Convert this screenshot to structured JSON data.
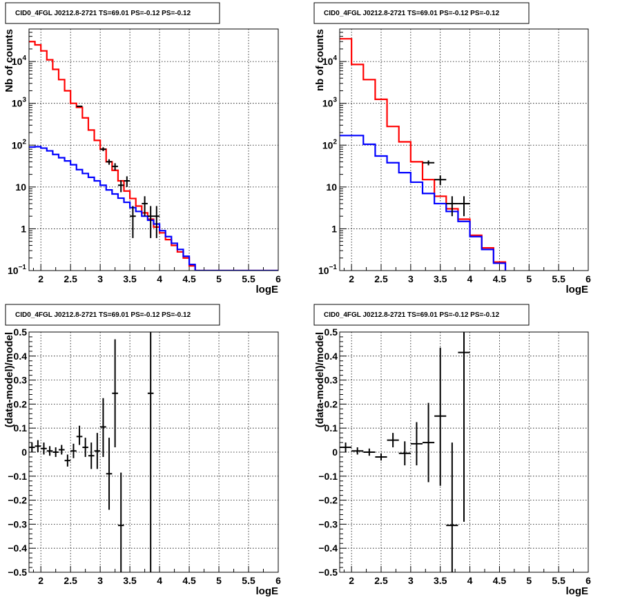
{
  "chart_data": [
    {
      "type": "line",
      "title": "CID0_4FGL J0212.8-2721 TS=69.01 PS=-0.12 PS=-0.12",
      "xlabel": "logE",
      "ylabel": "Nb of counts",
      "log_y": true,
      "xlim": [
        1.8,
        6.0
      ],
      "ylim": [
        0.1,
        60000
      ],
      "grid": true,
      "x_ticks": [
        "2",
        "2.5",
        "3",
        "3.5",
        "4",
        "4.5",
        "5",
        "5.5",
        "6"
      ],
      "y_ticks": [
        {
          "v": 0.1,
          "base": "10",
          "exp": "−1"
        },
        {
          "v": 1,
          "label": "1"
        },
        {
          "v": 10,
          "label": "10"
        },
        {
          "v": 100,
          "base": "10",
          "exp": "2"
        },
        {
          "v": 1000,
          "base": "10",
          "exp": "3"
        },
        {
          "v": 10000,
          "base": "10",
          "exp": "4"
        }
      ],
      "bin_edges": [
        1.8,
        1.9,
        2.0,
        2.1,
        2.2,
        2.3,
        2.4,
        2.5,
        2.6,
        2.7,
        2.8,
        2.9,
        3.0,
        3.1,
        3.2,
        3.3,
        3.4,
        3.5,
        3.6,
        3.7,
        3.8,
        3.9,
        4.0,
        4.1,
        4.2,
        4.3,
        4.4,
        4.5,
        4.6,
        4.7,
        4.8,
        4.9,
        5.0,
        5.1,
        5.2,
        5.3,
        5.4,
        5.5,
        5.6,
        5.7,
        5.8,
        5.9,
        6.0
      ],
      "series": [
        {
          "color": "#ff0000",
          "values": [
            30000,
            25000,
            18000,
            11000,
            6500,
            3700,
            2000,
            1000,
            800,
            450,
            230,
            130,
            80,
            40,
            25,
            14,
            8,
            5.3,
            3.5,
            2.4,
            1.7,
            1.1,
            0.8,
            0.55,
            0.4,
            0.28,
            0.2,
            0.13,
            0.1,
            0.1,
            0.1,
            0.1,
            0.1,
            0.1,
            0.1,
            0.1,
            0.1,
            0.1,
            0.1,
            0.1,
            0.1,
            0.1
          ]
        },
        {
          "color": "#0000ff",
          "values": [
            90,
            92,
            85,
            73,
            60,
            50,
            42,
            34,
            26,
            21,
            17,
            14,
            11,
            8.5,
            6.8,
            5.4,
            4.3,
            3.2,
            2.6,
            2.0,
            1.6,
            1.3,
            0.9,
            0.65,
            0.45,
            0.32,
            0.22,
            0.14,
            0.1,
            0.1,
            0.1,
            0.1,
            0.1,
            0.1,
            0.1,
            0.1,
            0.1,
            0.1,
            0.1,
            0.1,
            0.1,
            0.1
          ]
        }
      ],
      "points": [
        {
          "x": 2.65,
          "y": 850,
          "xerr": 0.05,
          "ylo": 830,
          "yhi": 870
        },
        {
          "x": 3.05,
          "y": 80,
          "xerr": 0.05,
          "ylo": 72,
          "yhi": 89
        },
        {
          "x": 3.15,
          "y": 40,
          "xerr": 0.05,
          "ylo": 34,
          "yhi": 46
        },
        {
          "x": 3.25,
          "y": 31,
          "xerr": 0.05,
          "ylo": 25,
          "yhi": 37
        },
        {
          "x": 3.35,
          "y": 11,
          "xerr": 0.05,
          "ylo": 7.5,
          "yhi": 14.5
        },
        {
          "x": 3.45,
          "y": 14,
          "xerr": 0.05,
          "ylo": 10,
          "yhi": 18
        },
        {
          "x": 3.55,
          "y": 2.0,
          "xerr": 0.05,
          "ylo": 0.6,
          "yhi": 3.5
        },
        {
          "x": 3.75,
          "y": 4.0,
          "xerr": 0.05,
          "ylo": 2.0,
          "yhi": 6.0
        },
        {
          "x": 3.85,
          "y": 2.0,
          "xerr": 0.05,
          "ylo": 0.6,
          "yhi": 3.5
        },
        {
          "x": 3.95,
          "y": 2.0,
          "xerr": 0.05,
          "ylo": 0.6,
          "yhi": 3.5
        }
      ]
    },
    {
      "type": "line",
      "title": "CID0_4FGL J0212.8-2721 TS=69.01 PS=-0.12 PS=-0.12",
      "xlabel": "logE",
      "ylabel": "nb of counts",
      "log_y": true,
      "xlim": [
        1.8,
        6.0
      ],
      "ylim": [
        0.1,
        60000
      ],
      "grid": true,
      "x_ticks": [
        "2",
        "2.5",
        "3",
        "3.5",
        "4",
        "4.5",
        "5",
        "5.5",
        "6"
      ],
      "y_ticks": [
        {
          "v": 0.1,
          "base": "10",
          "exp": "−1"
        },
        {
          "v": 1,
          "label": "1"
        },
        {
          "v": 10,
          "label": "10"
        },
        {
          "v": 100,
          "base": "10",
          "exp": "2"
        },
        {
          "v": 1000,
          "base": "10",
          "exp": "3"
        },
        {
          "v": 10000,
          "base": "10",
          "exp": "4"
        }
      ],
      "bin_edges": [
        1.8,
        2.0,
        2.2,
        2.4,
        2.6,
        2.8,
        3.0,
        3.2,
        3.4,
        3.6,
        3.8,
        4.0,
        4.2,
        4.4,
        4.6,
        4.8,
        5.0,
        5.2,
        5.4,
        5.6,
        5.8,
        6.0
      ],
      "series": [
        {
          "color": "#ff0000",
          "values": [
            35000,
            8500,
            3700,
            1250,
            280,
            120,
            40,
            15,
            6,
            3.0,
            1.7,
            0.7,
            0.35,
            0.16,
            0.09,
            0.08,
            0.08,
            0.08,
            0.08,
            0.08,
            0.08
          ]
        },
        {
          "color": "#0000ff",
          "values": [
            170,
            170,
            105,
            55,
            38,
            22,
            13,
            7,
            4,
            2.6,
            1.5,
            0.65,
            0.32,
            0.15,
            0.08,
            0.08,
            0.08,
            0.08,
            0.08,
            0.08,
            0.08
          ]
        }
      ],
      "points": [
        {
          "x": 3.3,
          "y": 38,
          "xerr": 0.1,
          "ylo": 33,
          "yhi": 43
        },
        {
          "x": 3.5,
          "y": 15,
          "xerr": 0.1,
          "ylo": 11,
          "yhi": 19
        },
        {
          "x": 3.7,
          "y": 4.0,
          "xerr": 0.1,
          "ylo": 2.0,
          "yhi": 6.0
        },
        {
          "x": 3.9,
          "y": 4.0,
          "xerr": 0.1,
          "ylo": 2.0,
          "yhi": 6.0
        }
      ]
    },
    {
      "type": "scatter",
      "title": "CID0_4FGL J0212.8-2721 TS=69.01 PS=-0.12 PS=-0.12",
      "xlabel": "logE",
      "ylabel": "(data-model)/model",
      "xlim": [
        1.8,
        6.0
      ],
      "ylim": [
        -0.5,
        0.5
      ],
      "grid": true,
      "x_ticks": [
        "2",
        "2.5",
        "3",
        "3.5",
        "4",
        "4.5",
        "5",
        "5.5",
        "6"
      ],
      "y_ticks": [
        "−0.5",
        "−0.4",
        "−0.3",
        "−0.2",
        "−0.1",
        "0",
        "0.1",
        "0.2",
        "0.3",
        "0.4",
        "0.5"
      ],
      "points": [
        {
          "x": 1.85,
          "y": 0.02,
          "xerr": 0.05,
          "ylo": 0.0,
          "yhi": 0.04
        },
        {
          "x": 1.95,
          "y": 0.025,
          "xerr": 0.05,
          "ylo": 0.0,
          "yhi": 0.05
        },
        {
          "x": 2.05,
          "y": 0.015,
          "xerr": 0.05,
          "ylo": -0.01,
          "yhi": 0.04
        },
        {
          "x": 2.15,
          "y": 0.005,
          "xerr": 0.05,
          "ylo": -0.015,
          "yhi": 0.025
        },
        {
          "x": 2.25,
          "y": 0.0,
          "xerr": 0.05,
          "ylo": -0.02,
          "yhi": 0.02
        },
        {
          "x": 2.35,
          "y": 0.01,
          "xerr": 0.05,
          "ylo": -0.01,
          "yhi": 0.03
        },
        {
          "x": 2.45,
          "y": -0.035,
          "xerr": 0.05,
          "ylo": -0.06,
          "yhi": -0.01
        },
        {
          "x": 2.55,
          "y": 0.005,
          "xerr": 0.05,
          "ylo": -0.025,
          "yhi": 0.035
        },
        {
          "x": 2.65,
          "y": 0.065,
          "xerr": 0.05,
          "ylo": 0.03,
          "yhi": 0.11
        },
        {
          "x": 2.75,
          "y": 0.02,
          "xerr": 0.05,
          "ylo": -0.02,
          "yhi": 0.06
        },
        {
          "x": 2.85,
          "y": -0.015,
          "xerr": 0.05,
          "ylo": -0.07,
          "yhi": 0.04
        },
        {
          "x": 2.95,
          "y": 0.005,
          "xerr": 0.05,
          "ylo": -0.07,
          "yhi": 0.08
        },
        {
          "x": 3.05,
          "y": 0.105,
          "xerr": 0.05,
          "ylo": -0.02,
          "yhi": 0.225
        },
        {
          "x": 3.15,
          "y": -0.09,
          "xerr": 0.05,
          "ylo": -0.24,
          "yhi": 0.06
        },
        {
          "x": 3.25,
          "y": 0.245,
          "xerr": 0.05,
          "ylo": 0.02,
          "yhi": 0.47
        },
        {
          "x": 3.35,
          "y": -0.305,
          "xerr": 0.05,
          "ylo": -0.5,
          "yhi": -0.085
        },
        {
          "x": 3.85,
          "y": 0.245,
          "xerr": 0.05,
          "ylo": -0.5,
          "yhi": 0.5
        }
      ]
    },
    {
      "type": "scatter",
      "title": "CID0_4FGL J0212.8-2721 TS=69.01 PS=-0.12 PS=-0.12",
      "xlabel": "logE",
      "ylabel": "(data-model)/model",
      "xlim": [
        1.8,
        6.0
      ],
      "ylim": [
        -0.5,
        0.5
      ],
      "grid": true,
      "x_ticks": [
        "2",
        "2.5",
        "3",
        "3.5",
        "4",
        "4.5",
        "5",
        "5.5",
        "6"
      ],
      "y_ticks": [
        "−0.5",
        "−0.4",
        "−0.3",
        "−0.2",
        "−0.1",
        "0",
        "0.1",
        "0.2",
        "0.3",
        "0.4",
        "0.5"
      ],
      "points": [
        {
          "x": 1.9,
          "y": 0.02,
          "xerr": 0.1,
          "ylo": 0.0,
          "yhi": 0.04
        },
        {
          "x": 2.1,
          "y": 0.005,
          "xerr": 0.1,
          "ylo": -0.01,
          "yhi": 0.02
        },
        {
          "x": 2.3,
          "y": 0.0,
          "xerr": 0.1,
          "ylo": -0.015,
          "yhi": 0.015
        },
        {
          "x": 2.5,
          "y": -0.02,
          "xerr": 0.1,
          "ylo": -0.035,
          "yhi": -0.005
        },
        {
          "x": 2.7,
          "y": 0.05,
          "xerr": 0.1,
          "ylo": 0.02,
          "yhi": 0.08
        },
        {
          "x": 2.9,
          "y": -0.005,
          "xerr": 0.1,
          "ylo": -0.055,
          "yhi": 0.045
        },
        {
          "x": 3.1,
          "y": 0.035,
          "xerr": 0.1,
          "ylo": -0.055,
          "yhi": 0.125
        },
        {
          "x": 3.3,
          "y": 0.04,
          "xerr": 0.1,
          "ylo": -0.125,
          "yhi": 0.205
        },
        {
          "x": 3.5,
          "y": 0.15,
          "xerr": 0.1,
          "ylo": -0.14,
          "yhi": 0.435
        },
        {
          "x": 3.7,
          "y": -0.305,
          "xerr": 0.1,
          "ylo": -0.5,
          "yhi": 0.04
        },
        {
          "x": 3.9,
          "y": 0.415,
          "xerr": 0.1,
          "ylo": -0.29,
          "yhi": 0.5
        }
      ]
    }
  ]
}
